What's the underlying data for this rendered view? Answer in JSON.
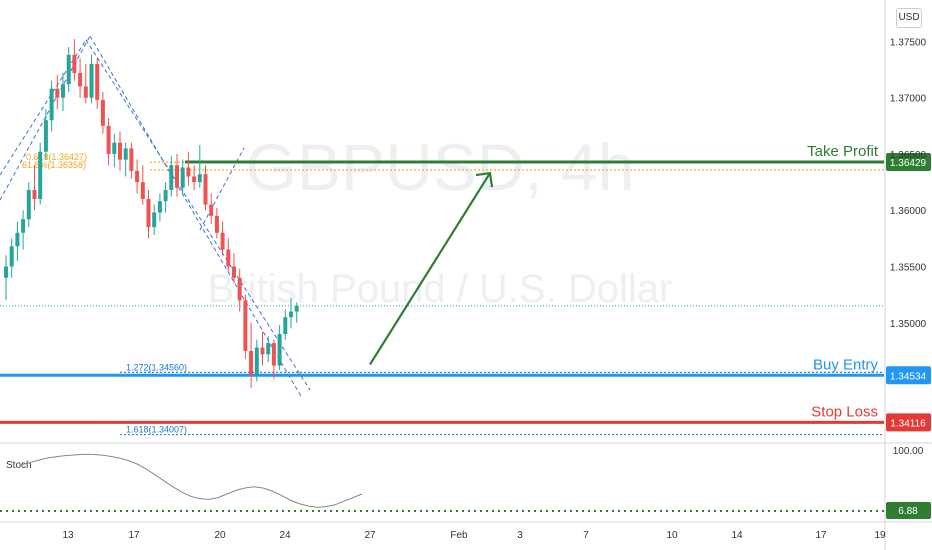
{
  "watermark": {
    "symbol": "GBPUSD, 4h",
    "name": "British Pound / U.S. Dollar"
  },
  "currency_button": "USD",
  "colors": {
    "up": "#26a69a",
    "down": "#ef5350",
    "take_profit": "#2e7d32",
    "buy_entry": "#2196f3",
    "stop_loss": "#e53935",
    "fib": "#f5a623",
    "stoch": "#888888",
    "stoch_level": "#2e7d32"
  },
  "chart_data": {
    "type": "candlestick",
    "symbol": "GBPUSD",
    "timeframe": "4h",
    "price_axis": {
      "ticks": [
        "1.37500",
        "1.37000",
        "1.36500",
        "1.36000",
        "1.35500",
        "1.35000"
      ],
      "tick_values": [
        1.375,
        1.37,
        1.365,
        1.36,
        1.355,
        1.35
      ],
      "range": [
        1.3395,
        1.3785
      ]
    },
    "time_axis": {
      "labels": [
        "13",
        "17",
        "20",
        "24",
        "27",
        "Feb",
        "3",
        "7",
        "10",
        "14",
        "17",
        "19"
      ]
    },
    "candles_ohlc": [
      [
        1.354,
        1.356,
        1.352,
        1.355
      ],
      [
        1.355,
        1.3575,
        1.354,
        1.3568
      ],
      [
        1.3568,
        1.359,
        1.3555,
        1.358
      ],
      [
        1.358,
        1.36,
        1.3565,
        1.3592
      ],
      [
        1.3592,
        1.3625,
        1.3585,
        1.3618
      ],
      [
        1.3618,
        1.364,
        1.36,
        1.361
      ],
      [
        1.361,
        1.366,
        1.3605,
        1.3652
      ],
      [
        1.3652,
        1.369,
        1.3645,
        1.368
      ],
      [
        1.368,
        1.3715,
        1.367,
        1.3708
      ],
      [
        1.3708,
        1.372,
        1.369,
        1.37
      ],
      [
        1.37,
        1.3722,
        1.3688,
        1.3712
      ],
      [
        1.3712,
        1.3745,
        1.3705,
        1.3738
      ],
      [
        1.3738,
        1.3752,
        1.3715,
        1.3722
      ],
      [
        1.3722,
        1.3735,
        1.37,
        1.371
      ],
      [
        1.371,
        1.373,
        1.3695,
        1.37
      ],
      [
        1.37,
        1.3738,
        1.3695,
        1.373
      ],
      [
        1.373,
        1.3735,
        1.369,
        1.3698
      ],
      [
        1.3698,
        1.3705,
        1.3668,
        1.3675
      ],
      [
        1.3675,
        1.3682,
        1.364,
        1.365
      ],
      [
        1.365,
        1.3668,
        1.3638,
        1.366
      ],
      [
        1.366,
        1.367,
        1.3635,
        1.3645
      ],
      [
        1.3645,
        1.366,
        1.363,
        1.3655
      ],
      [
        1.3655,
        1.366,
        1.3628,
        1.3635
      ],
      [
        1.3635,
        1.3645,
        1.3615,
        1.3625
      ],
      [
        1.3625,
        1.364,
        1.3605,
        1.361
      ],
      [
        1.361,
        1.3618,
        1.3575,
        1.3585
      ],
      [
        1.3585,
        1.3605,
        1.3578,
        1.3598
      ],
      [
        1.3598,
        1.3615,
        1.359,
        1.3608
      ],
      [
        1.3608,
        1.3625,
        1.3598,
        1.3618
      ],
      [
        1.3618,
        1.3648,
        1.3612,
        1.364
      ],
      [
        1.364,
        1.365,
        1.3612,
        1.362
      ],
      [
        1.362,
        1.3645,
        1.3615,
        1.3638
      ],
      [
        1.3638,
        1.3652,
        1.3622,
        1.363
      ],
      [
        1.363,
        1.364,
        1.3618,
        1.3625
      ],
      [
        1.3625,
        1.3658,
        1.362,
        1.3632
      ],
      [
        1.3632,
        1.364,
        1.36,
        1.3605
      ],
      [
        1.3605,
        1.3615,
        1.3588,
        1.3595
      ],
      [
        1.3595,
        1.3602,
        1.3575,
        1.358
      ],
      [
        1.358,
        1.359,
        1.356,
        1.3565
      ],
      [
        1.3565,
        1.3575,
        1.3545,
        1.355
      ],
      [
        1.355,
        1.3562,
        1.3535,
        1.354
      ],
      [
        1.354,
        1.3548,
        1.351,
        1.352
      ],
      [
        1.352,
        1.3525,
        1.3468,
        1.3475
      ],
      [
        1.3475,
        1.35,
        1.3442,
        1.3453
      ],
      [
        1.3453,
        1.3485,
        1.3448,
        1.3478
      ],
      [
        1.3478,
        1.3492,
        1.3462,
        1.3472
      ],
      [
        1.3472,
        1.3488,
        1.3465,
        1.3482
      ],
      [
        1.3482,
        1.3485,
        1.345,
        1.3462
      ],
      [
        1.3462,
        1.3498,
        1.3458,
        1.349
      ],
      [
        1.349,
        1.3512,
        1.3485,
        1.3505
      ],
      [
        1.3505,
        1.3522,
        1.3495,
        1.351
      ],
      [
        1.351,
        1.3518,
        1.35,
        1.3515
      ]
    ],
    "levels": [
      {
        "label": "Take Profit",
        "price_label": "1.36429",
        "value": 1.36429
      },
      {
        "label": "Buy Entry",
        "price_label": "1.34534",
        "value": 1.34534
      },
      {
        "label": "Stop Loss",
        "price_label": "1.34116",
        "value": 1.34116
      }
    ],
    "fib_labels": [
      {
        "text": "0.618(1.36427)",
        "value": 1.36427
      },
      {
        "text": "61.8%(1.36358)",
        "value": 1.36358
      },
      {
        "text": "1.272(1.34560)",
        "value": 1.3456
      },
      {
        "text": "1.618(1.34007)",
        "value": 1.34007
      }
    ],
    "last_price": 1.3515,
    "projection_arrow": {
      "from_value": 1.3463,
      "to_value": 1.3633
    },
    "stochastic": {
      "name": "Stoch",
      "top_label": "100.00",
      "current_label": "6.88",
      "range": [
        0,
        100
      ],
      "values": [
        78,
        82,
        86,
        90,
        92,
        94,
        95,
        96,
        96,
        95,
        93,
        90,
        86,
        80,
        72,
        62,
        52,
        42,
        33,
        26,
        22,
        21,
        24,
        30,
        36,
        40,
        42,
        40,
        35,
        28,
        20,
        14,
        10,
        8,
        9,
        12,
        18,
        24,
        30
      ]
    }
  }
}
